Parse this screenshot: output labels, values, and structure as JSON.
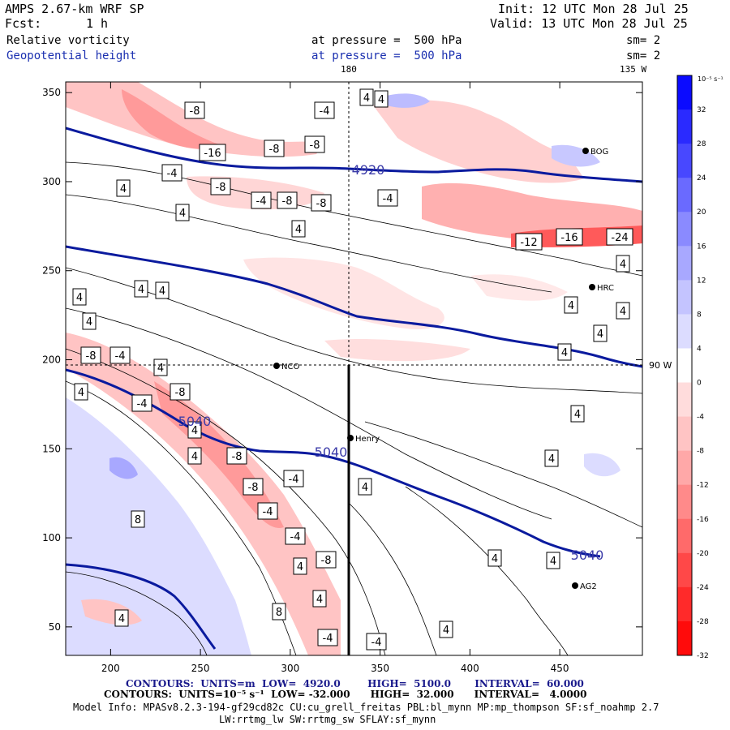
{
  "header": {
    "model": "AMPS 2.67-km WRF SP",
    "init": "Init: 12 UTC Mon 28 Jul 25",
    "fcst_label": "Fcst:",
    "fcst_value": "1 h",
    "valid": "Valid: 13 UTC Mon 28 Jul 25",
    "field1": "Relative vorticity",
    "field1_level": "at pressure =  500 hPa",
    "field1_sm": "sm= 2",
    "field2": "Geopotential height",
    "field2_level": "at pressure =  500 hPa",
    "field2_sm": "sm= 2"
  },
  "map_labels": {
    "lon_180": "180",
    "lon_135": "135 W",
    "lon_90": "90 W",
    "stations": [
      "NCO",
      "Henry",
      "HRC",
      "AG2",
      "BOG"
    ]
  },
  "colorbar": {
    "unit": "10⁻⁵ s⁻¹",
    "ticks": [
      "32",
      "28",
      "24",
      "20",
      "16",
      "12",
      "8",
      "4",
      "0",
      "-4",
      "-8",
      "-12",
      "-16",
      "-20",
      "-24",
      "-28",
      "-32"
    ],
    "colors": [
      "#0b0bff",
      "#2a2aff",
      "#4848ff",
      "#6a6aff",
      "#8a8aff",
      "#a8a8ff",
      "#c4c4ff",
      "#dcdcff",
      "#ffffff",
      "#ffdcdc",
      "#ffc4c4",
      "#ffa8a8",
      "#ff8a8a",
      "#ff6a6a",
      "#ff4848",
      "#ff2a2a",
      "#ff0b0b"
    ]
  },
  "footer": {
    "line1": "CONTOURS:  UNITS=m  LOW=  4920.0        HIGH=  5100.0       INTERVAL=  60.000",
    "line2": "CONTOURS:  UNITS=10⁻⁵ s⁻¹  LOW= -32.000      HIGH=  32.000      INTERVAL=   4.0000",
    "line3": "Model Info: MPASv8.2.3-194-gf29cd82c CU:cu_grell_freitas PBL:bl_mynn MP:mp_thompson SF:sf_noahmp 2.7",
    "line4": "LW:rrtmg_lw SW:rrtmg_sw SFLAY:sf_mynn"
  },
  "chart_data": {
    "type": "heatmap",
    "title": "Relative vorticity / Geopotential height at 500 hPa",
    "x_ticks": [
      200,
      250,
      300,
      350,
      400,
      450
    ],
    "y_ticks": [
      50,
      100,
      150,
      200,
      250,
      300,
      350
    ],
    "xlim": [
      175,
      496
    ],
    "ylim": [
      34,
      356
    ],
    "height_contours": {
      "units": "m",
      "low": 4920.0,
      "high": 5100.0,
      "interval": 60.0,
      "labels": [
        "4920",
        "5040",
        "5040",
        "5040"
      ]
    },
    "vorticity_contours": {
      "units": "10^-5 s^-1",
      "low": -32.0,
      "high": 32.0,
      "interval": 4.0,
      "labels": [
        "-8",
        "-4",
        "4",
        "-16",
        "-8",
        "-8",
        "-4",
        "4",
        "-8",
        "4",
        "-4",
        "-8",
        "-8",
        "4",
        "4",
        "4",
        "4",
        "4",
        "-8",
        "-4",
        "4",
        "4",
        "-4",
        "-8",
        "4",
        "-8",
        "4",
        "-8",
        "-4",
        "-4",
        "-4",
        "-8",
        "4",
        "8",
        "4",
        "4",
        "8",
        "-4",
        "4",
        "-4",
        "4",
        "4",
        "4",
        "4",
        "4",
        "4",
        "4",
        "4",
        "-12",
        "-16",
        "-24",
        "4",
        "4",
        "-4",
        "4"
      ]
    }
  }
}
